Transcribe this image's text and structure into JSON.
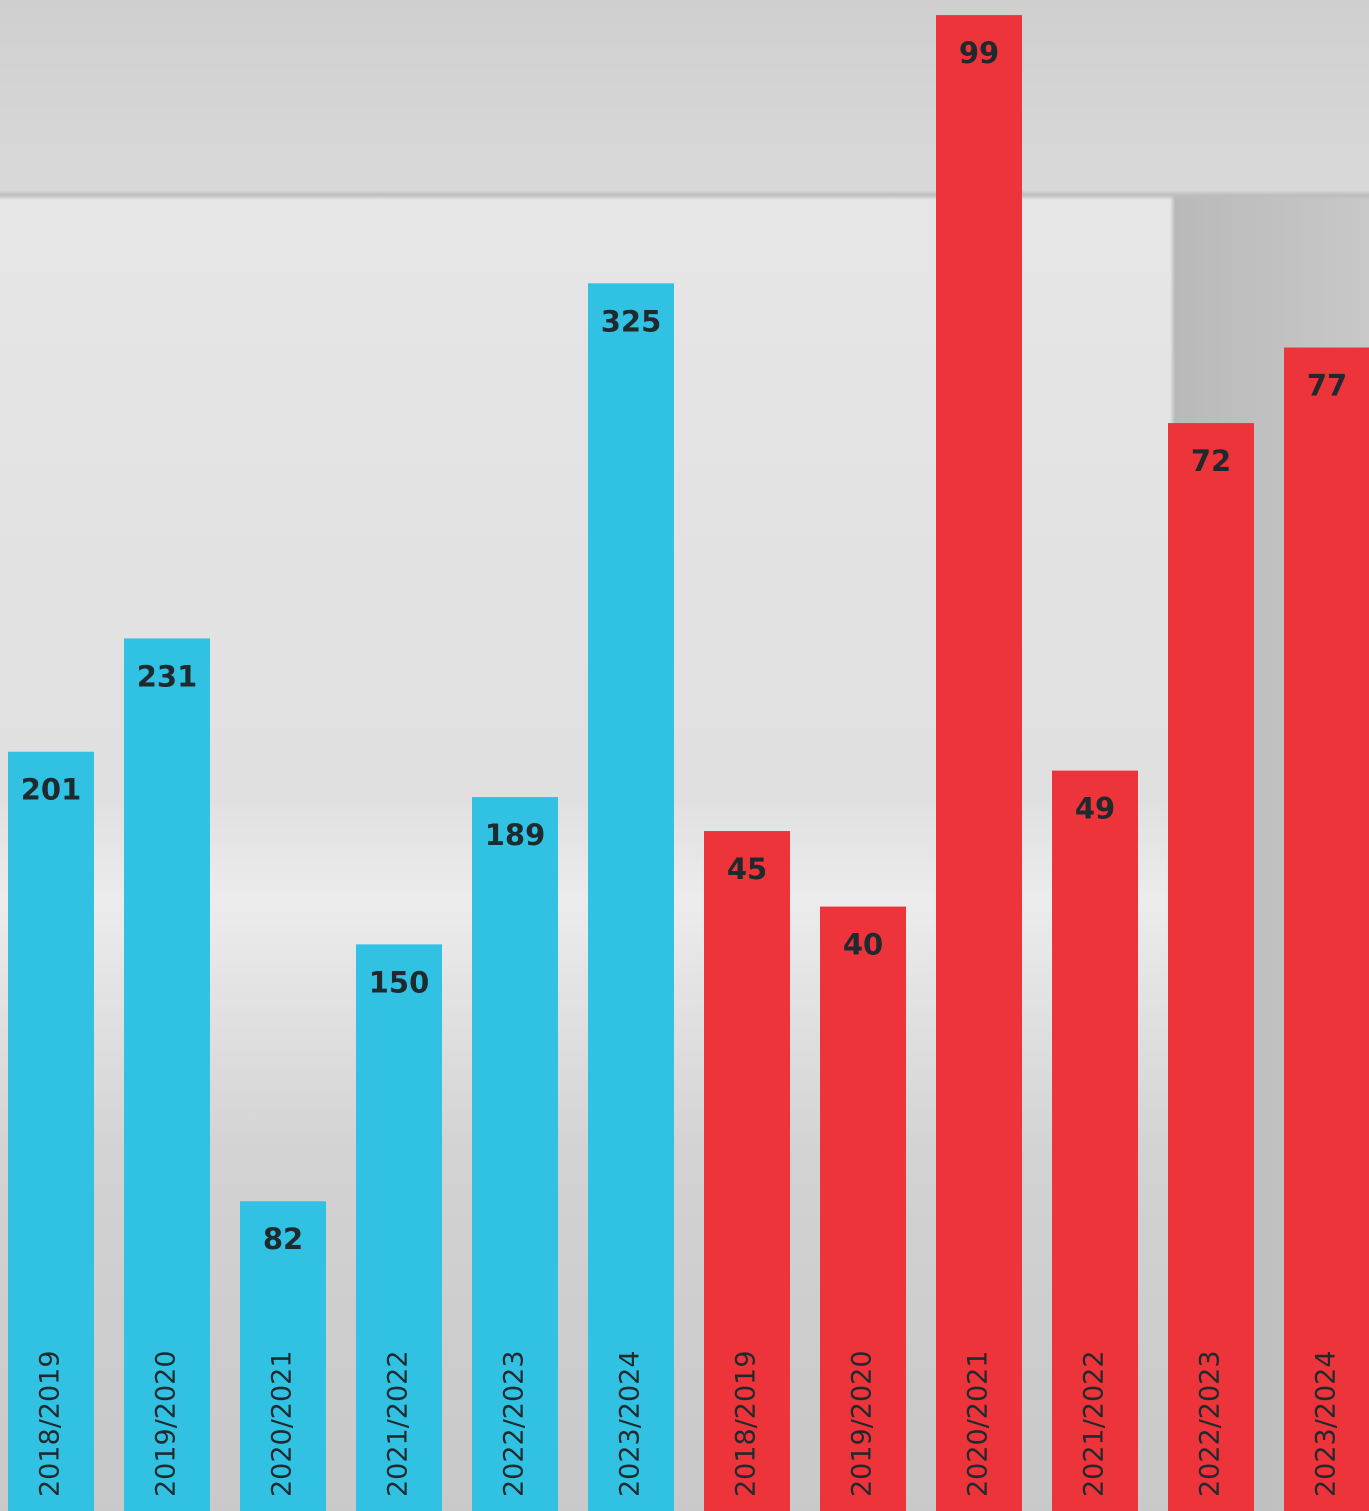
{
  "chart_data": [
    {
      "type": "bar",
      "categories": [
        "2018/2019",
        "2019/2020",
        "2020/2021",
        "2021/2022",
        "2022/2023",
        "2023/2024"
      ],
      "values": [
        201,
        231,
        82,
        150,
        189,
        325
      ],
      "color": "#31c2e3",
      "ylim": [
        0,
        400
      ]
    },
    {
      "type": "bar",
      "categories": [
        "2018/2019",
        "2019/2020",
        "2020/2021",
        "2021/2022",
        "2022/2023",
        "2023/2024"
      ],
      "values": [
        45,
        40,
        99,
        49,
        72,
        77
      ],
      "color": "#ec343a",
      "ylim": [
        0,
        100
      ]
    }
  ]
}
